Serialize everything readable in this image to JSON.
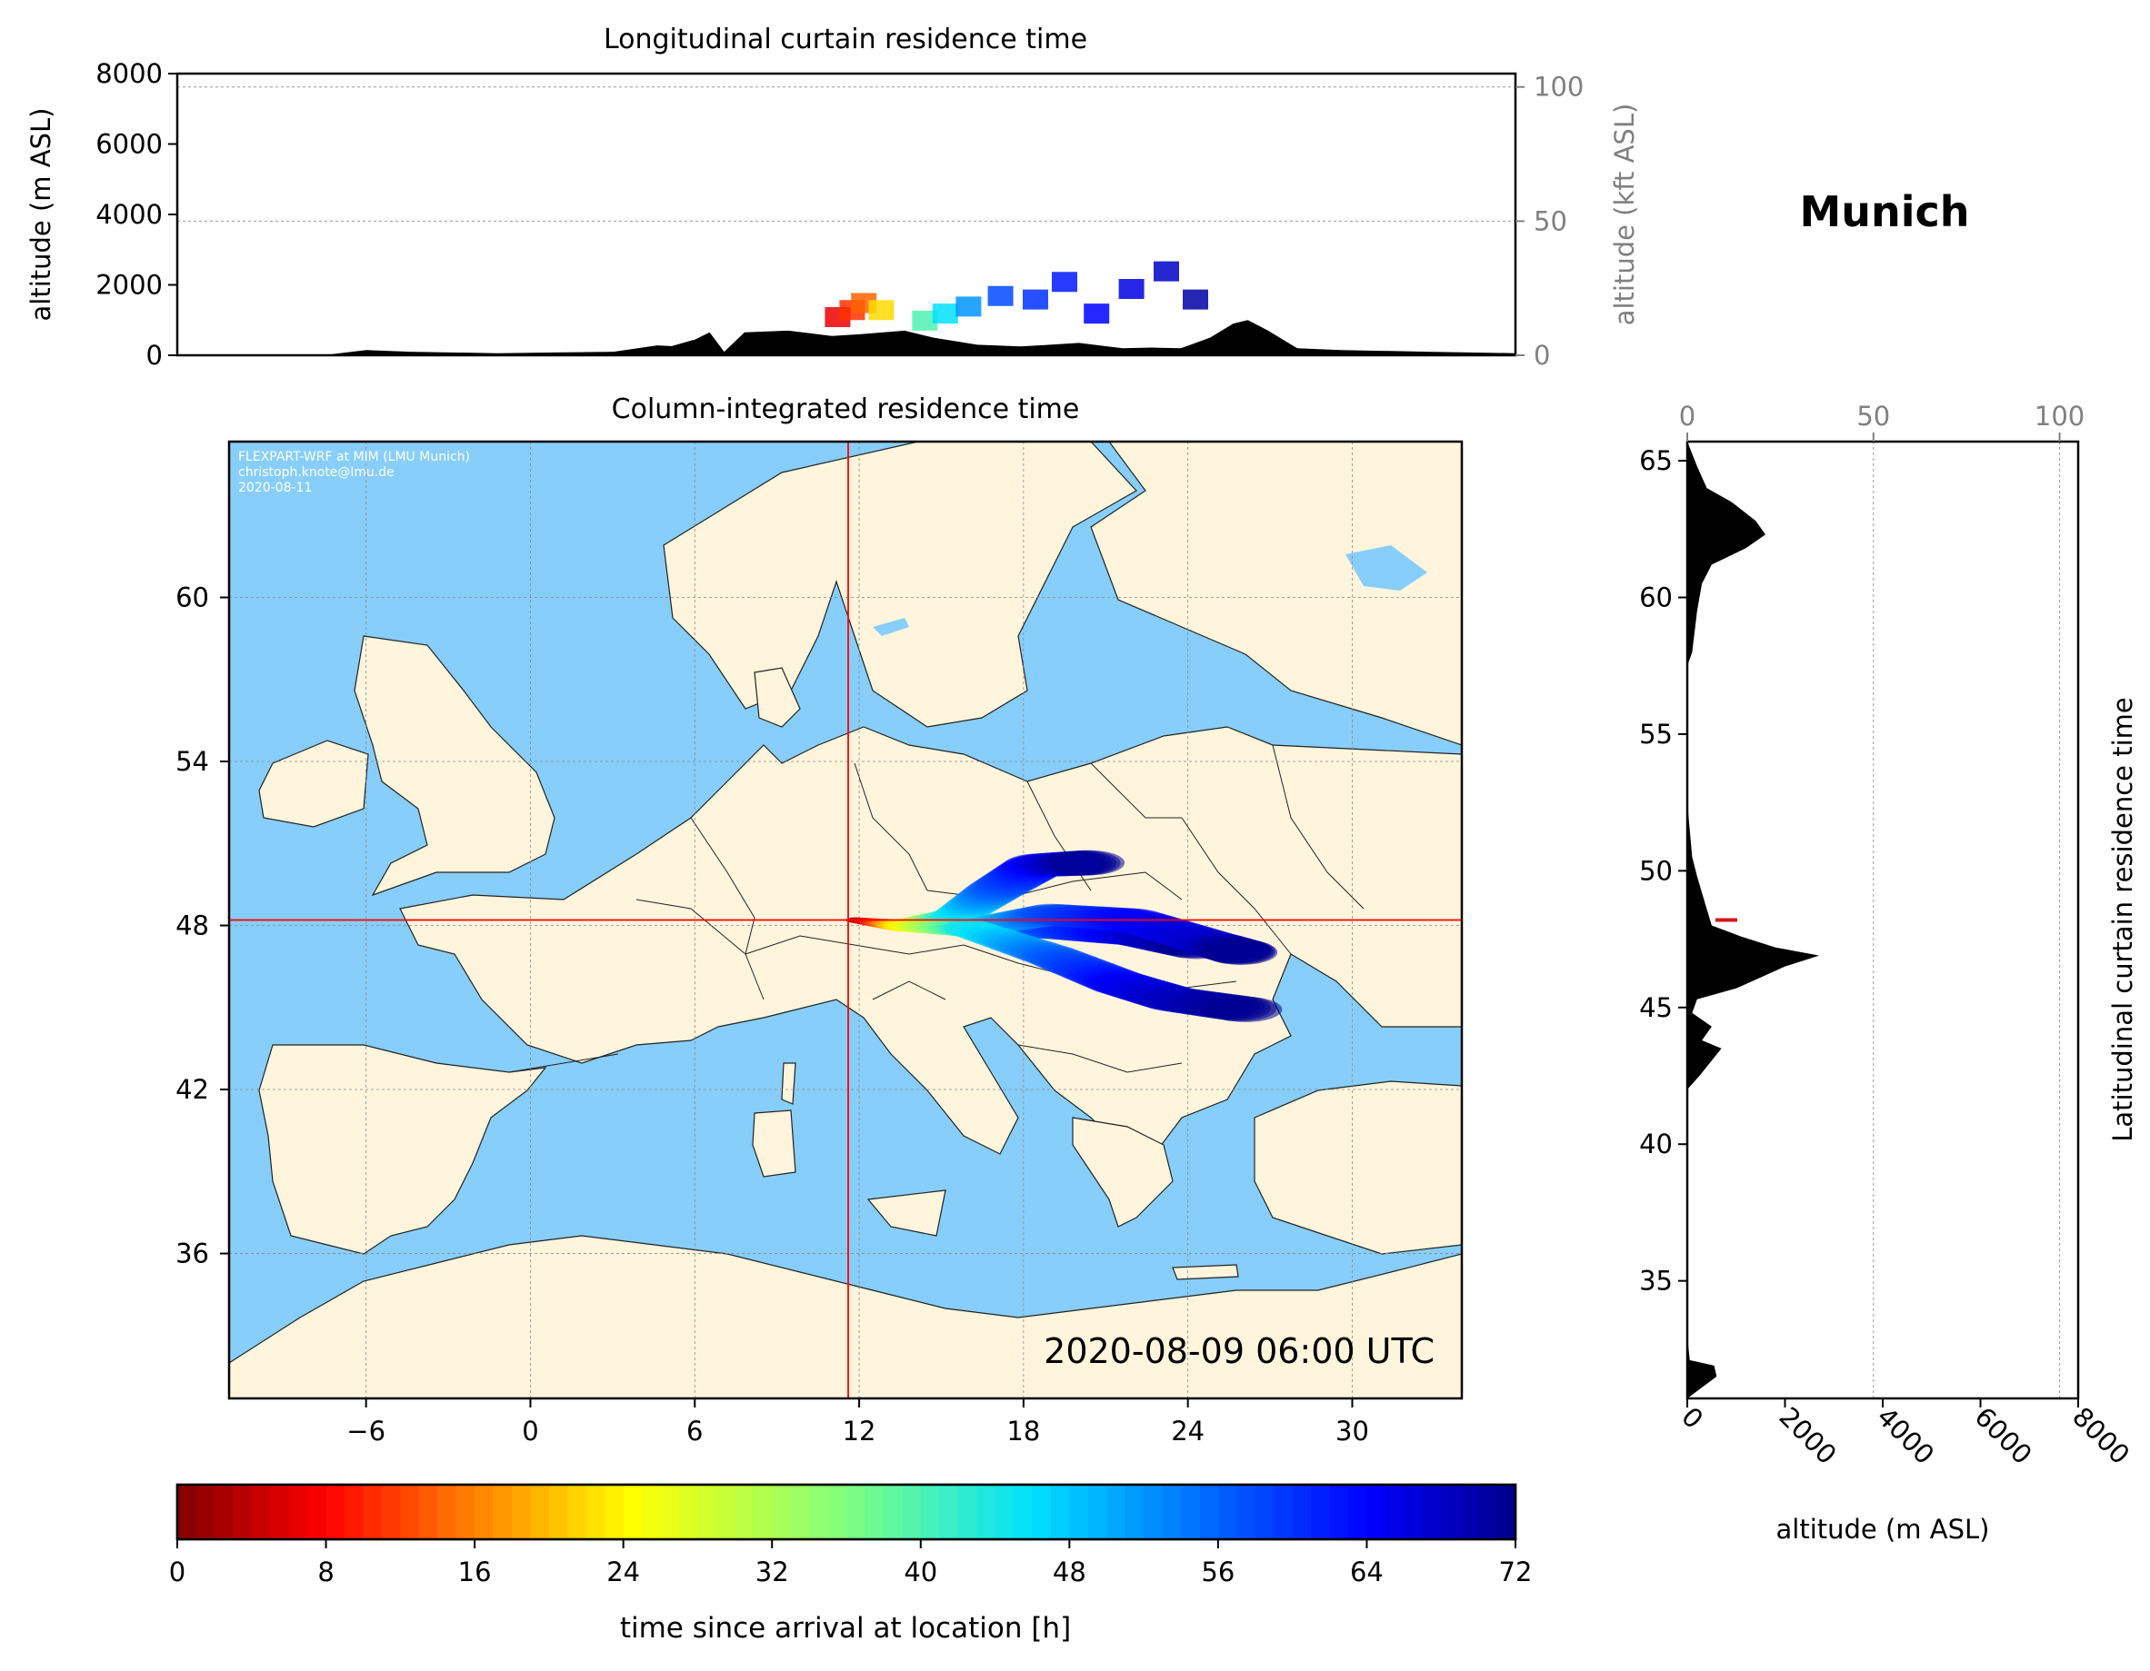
{
  "location_title": "Munich",
  "colors": {
    "sea": "#87CEFA",
    "land": "#FFF5DC",
    "crosshair": "#FF0000",
    "terrain": "#000000",
    "secondary_axis": "#808080"
  },
  "colormap": "jet_r",
  "chart_data": [
    {
      "type": "heatmap",
      "title": "Longitudinal curtain residence time",
      "ylabel": "altitude (m ASL)",
      "ylim": [
        0,
        8000
      ],
      "yticks": [
        "0",
        "2000",
        "4000",
        "6000",
        "8000"
      ],
      "y2label": "altitude (kft ASL)",
      "y2ticks": [
        "0",
        "50",
        "100"
      ],
      "x_range_lon": [
        -11,
        35
      ],
      "terrain_lon": [
        -11,
        -6,
        -4.5,
        -3,
        0,
        2,
        4,
        5.5,
        6,
        6.8,
        7.3,
        7.8,
        8.5,
        10,
        11.5,
        12.5,
        14,
        15,
        16.5,
        18,
        20,
        21.5,
        22.5,
        23.5,
        24.5,
        25.3,
        25.8,
        26.5,
        27.5,
        29,
        32,
        35
      ],
      "terrain_alt": [
        0,
        0,
        150,
        100,
        60,
        80,
        100,
        280,
        260,
        450,
        650,
        100,
        650,
        700,
        550,
        600,
        700,
        500,
        300,
        250,
        350,
        200,
        220,
        200,
        500,
        900,
        1000,
        700,
        200,
        150,
        100,
        60
      ],
      "plume_cells": [
        {
          "lon": 11.7,
          "alt": 800,
          "h": 7
        },
        {
          "lon": 12.2,
          "alt": 1000,
          "h": 11
        },
        {
          "lon": 12.6,
          "alt": 1200,
          "h": 14
        },
        {
          "lon": 13.2,
          "alt": 1000,
          "h": 22
        },
        {
          "lon": 14.7,
          "alt": 700,
          "h": 40
        },
        {
          "lon": 15.4,
          "alt": 900,
          "h": 46
        },
        {
          "lon": 16.2,
          "alt": 1100,
          "h": 52
        },
        {
          "lon": 17.3,
          "alt": 1400,
          "h": 58
        },
        {
          "lon": 18.5,
          "alt": 1300,
          "h": 60
        },
        {
          "lon": 19.5,
          "alt": 1800,
          "h": 62
        },
        {
          "lon": 20.6,
          "alt": 900,
          "h": 64
        },
        {
          "lon": 21.8,
          "alt": 1600,
          "h": 66
        },
        {
          "lon": 23.0,
          "alt": 2100,
          "h": 68
        },
        {
          "lon": 24.0,
          "alt": 1300,
          "h": 70
        }
      ]
    },
    {
      "type": "heatmap",
      "title": "Column-integrated residence time",
      "x_range_lon": [
        -11,
        34
      ],
      "y_range_lat": [
        30.7,
        65.7
      ],
      "xticks": [
        "−6",
        "0",
        "6",
        "12",
        "18",
        "24",
        "30"
      ],
      "yticks": [
        "36",
        "42",
        "48",
        "54",
        "60"
      ],
      "crosshair": {
        "lon": 11.6,
        "lat": 48.2
      },
      "credit_lines": [
        "FLEXPART-WRF at MIM (LMU Munich)",
        "christoph.knote@lmu.de",
        "2020-08-11"
      ],
      "timestamp": "2020-08-09 06:00 UTC",
      "plume_branches": [
        {
          "name": "north",
          "path": [
            [
              11.8,
              48.2
            ],
            [
              13.5,
              48.0
            ],
            [
              15.5,
              48.3
            ],
            [
              17.0,
              49.3
            ],
            [
              18.5,
              50.2
            ],
            [
              20.5,
              50.3
            ]
          ],
          "hours": [
            2,
            24,
            44,
            56,
            64,
            72
          ]
        },
        {
          "name": "center",
          "path": [
            [
              11.8,
              48.2
            ],
            [
              13.5,
              48.0
            ],
            [
              16.0,
              47.9
            ],
            [
              19.0,
              47.9
            ],
            [
              22.0,
              47.7
            ],
            [
              24.5,
              47.2
            ]
          ],
          "hours": [
            2,
            24,
            44,
            58,
            66,
            72
          ]
        },
        {
          "name": "east",
          "path": [
            [
              16.0,
              47.9
            ],
            [
              19.0,
              48.4
            ],
            [
              22.0,
              48.2
            ],
            [
              25.0,
              47.3
            ],
            [
              26.0,
              47.0
            ]
          ],
          "hours": [
            44,
            58,
            64,
            68,
            72
          ]
        },
        {
          "name": "south",
          "path": [
            [
              16.0,
              47.9
            ],
            [
              19.0,
              46.9
            ],
            [
              21.5,
              45.9
            ],
            [
              23.5,
              45.3
            ],
            [
              26.3,
              44.9
            ]
          ],
          "hours": [
            44,
            56,
            64,
            68,
            72
          ]
        }
      ]
    },
    {
      "type": "heatmap",
      "title": "Latitudinal curtain residence time",
      "xlabel": "altitude (m ASL)",
      "xlim": [
        0,
        8000
      ],
      "xticks": [
        "0",
        "2000",
        "4000",
        "6000",
        "8000"
      ],
      "x2ticks": [
        "0",
        "50",
        "100"
      ],
      "yticks": [
        "35",
        "40",
        "45",
        "50",
        "55",
        "60",
        "65"
      ],
      "y_range_lat": [
        30.7,
        65.7
      ],
      "terrain_lat": [
        30.7,
        31.5,
        31.9,
        32.1,
        33,
        36,
        42,
        42.5,
        43.5,
        43.8,
        44.3,
        44.8,
        45.3,
        45.7,
        46.1,
        46.5,
        46.9,
        47.2,
        47.6,
        48.0,
        48.6,
        49.2,
        49.8,
        50.5,
        52.5,
        53.0,
        57.5,
        58.0,
        59.5,
        60.5,
        61.2,
        61.8,
        62.3,
        62.8,
        63.5,
        64.0,
        64.8,
        65.7
      ],
      "terrain_alt": [
        0,
        600,
        550,
        50,
        0,
        0,
        0,
        250,
        700,
        300,
        500,
        100,
        200,
        1000,
        1500,
        2000,
        2700,
        1800,
        1100,
        500,
        400,
        300,
        200,
        100,
        0,
        0,
        0,
        100,
        200,
        300,
        500,
        1200,
        1600,
        1400,
        900,
        400,
        200,
        0
      ],
      "plume_cells": [
        {
          "lat": 48.2,
          "alt": 800,
          "h": 5
        }
      ]
    },
    {
      "type": "heatmap",
      "xlabel": "time since arrival at location [h]",
      "range": [
        0,
        72
      ],
      "ticks": [
        "0",
        "8",
        "16",
        "24",
        "32",
        "40",
        "48",
        "56",
        "64",
        "72"
      ]
    }
  ]
}
